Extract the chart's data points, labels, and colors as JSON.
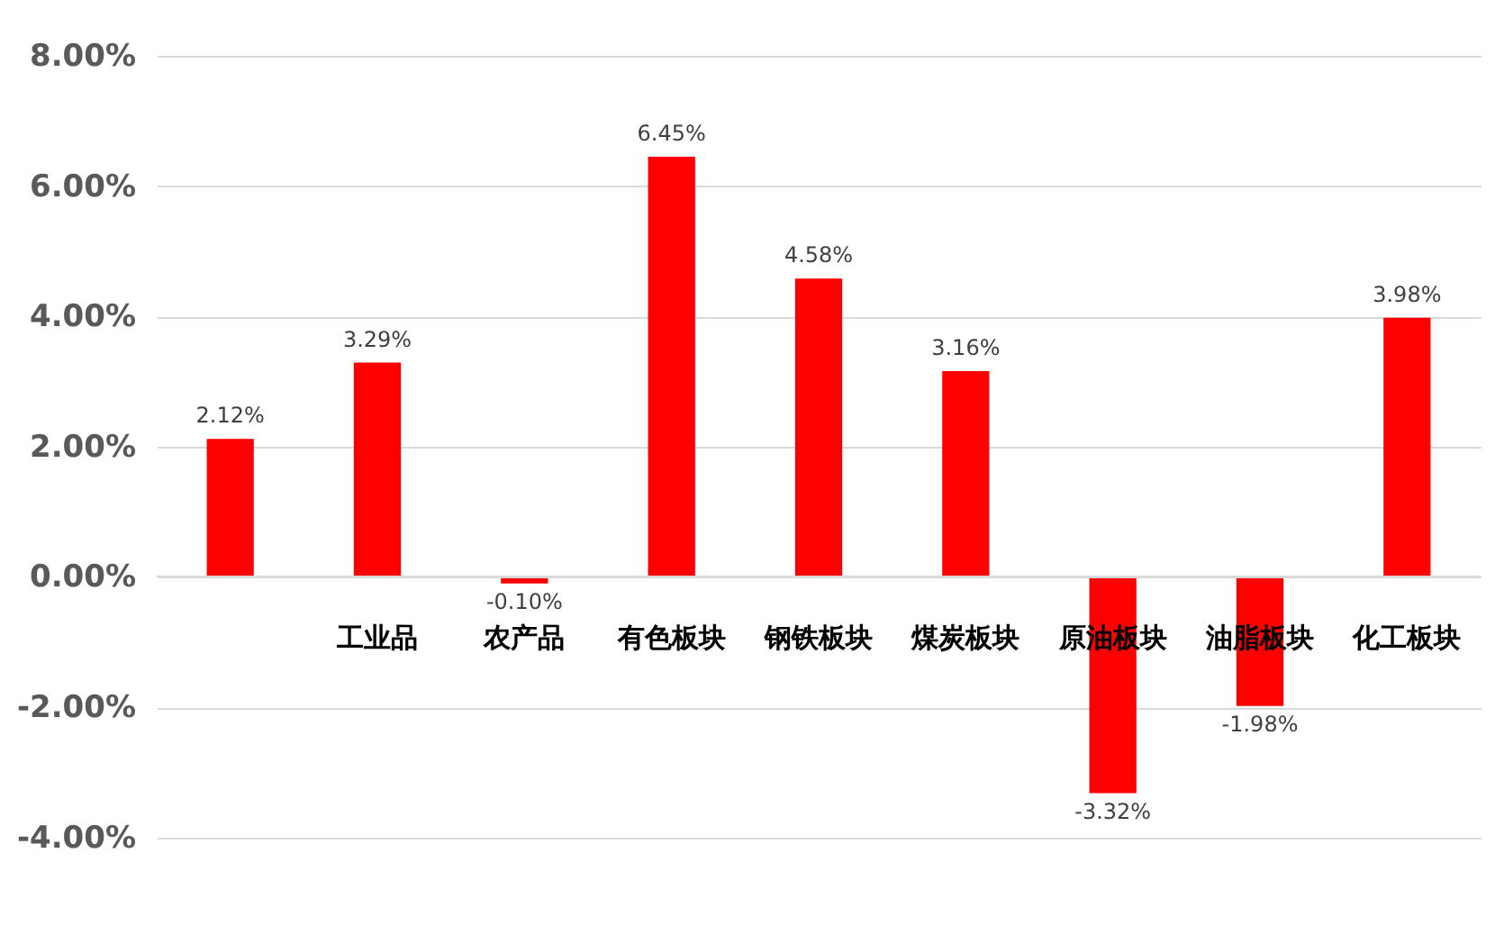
{
  "chart_data": {
    "type": "bar",
    "categories": [
      null,
      "工业品",
      "农产品",
      "有色板块",
      "钢铁板块",
      "煤炭板块",
      "原油板块",
      "油脂板块",
      "化工板块"
    ],
    "values": [
      2.12,
      3.29,
      -0.1,
      6.45,
      4.58,
      3.16,
      -3.32,
      -1.98,
      3.98
    ],
    "value_labels": [
      "2.12%",
      "3.29%",
      "-0.10%",
      "6.45%",
      "4.58%",
      "3.16%",
      "-3.32%",
      "-1.98%",
      "3.98%"
    ],
    "color": "#ff0000",
    "ylim": [
      -5,
      8
    ],
    "yticks": [
      {
        "value": -4,
        "label": "-4.00%"
      },
      {
        "value": -2,
        "label": "-2.00%"
      },
      {
        "value": 0,
        "label": "0.00%"
      },
      {
        "value": 2,
        "label": "2.00%"
      },
      {
        "value": 4,
        "label": "4.00%"
      },
      {
        "value": 6,
        "label": "6.00%"
      },
      {
        "value": 8,
        "label": "8.00%"
      }
    ],
    "grid": "y"
  }
}
